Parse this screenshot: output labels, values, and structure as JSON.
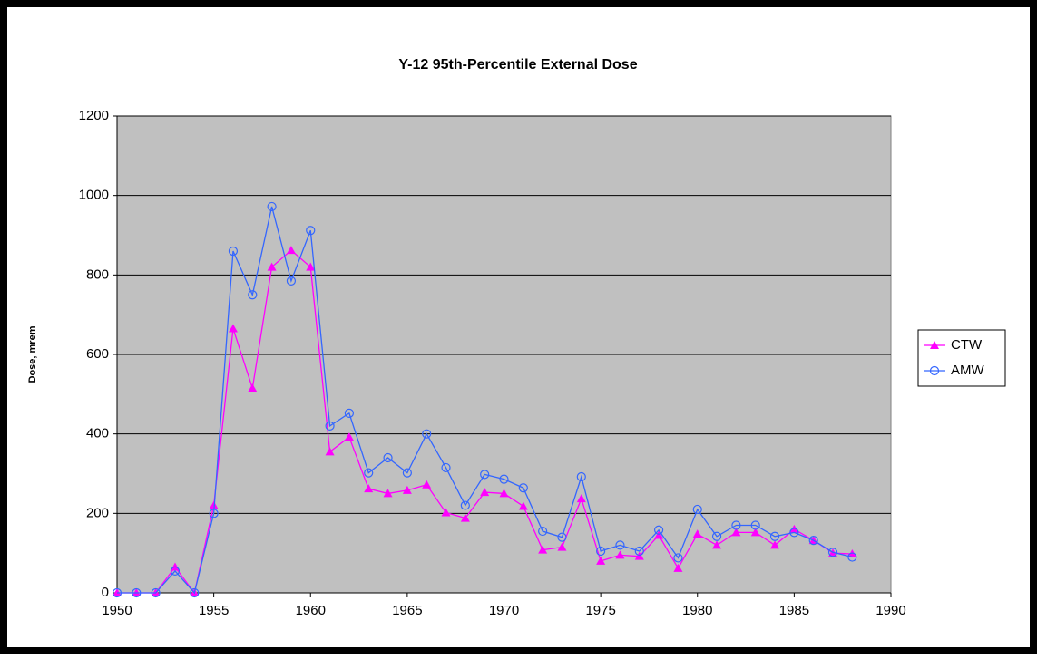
{
  "chart_data": {
    "type": "line",
    "title": "Y-12 95th-Percentile External Dose",
    "y_label": "Dose, mrem",
    "x": [
      1950,
      1951,
      1952,
      1953,
      1954,
      1955,
      1956,
      1957,
      1958,
      1959,
      1960,
      1961,
      1962,
      1963,
      1964,
      1965,
      1966,
      1967,
      1968,
      1969,
      1970,
      1971,
      1972,
      1973,
      1974,
      1975,
      1976,
      1977,
      1978,
      1979,
      1980,
      1981,
      1982,
      1983,
      1984,
      1985,
      1986,
      1987,
      1988
    ],
    "series": [
      {
        "name": "CTW",
        "color": "#ff00ff",
        "marker": "triangle",
        "values": [
          0,
          0,
          0,
          65,
          0,
          220,
          665,
          515,
          820,
          862,
          820,
          355,
          392,
          262,
          250,
          258,
          272,
          202,
          188,
          253,
          250,
          218,
          108,
          115,
          237,
          80,
          95,
          92,
          145,
          62,
          148,
          120,
          152,
          152,
          120,
          160,
          132,
          100,
          98
        ]
      },
      {
        "name": "AMW",
        "color": "#3366ff",
        "marker": "circle",
        "values": [
          0,
          0,
          0,
          55,
          0,
          200,
          860,
          750,
          972,
          785,
          912,
          420,
          452,
          302,
          340,
          302,
          400,
          315,
          220,
          298,
          286,
          264,
          155,
          140,
          292,
          105,
          120,
          105,
          158,
          88,
          210,
          142,
          170,
          170,
          142,
          152,
          132,
          102,
          90
        ]
      }
    ],
    "xlim": [
      1950,
      1990
    ],
    "xticks": [
      1950,
      1955,
      1960,
      1965,
      1970,
      1975,
      1980,
      1985,
      1990
    ],
    "ylim": [
      0,
      1200
    ],
    "yticks": [
      0,
      200,
      400,
      600,
      800,
      1000,
      1200
    ],
    "grid": true,
    "legend": "right"
  }
}
